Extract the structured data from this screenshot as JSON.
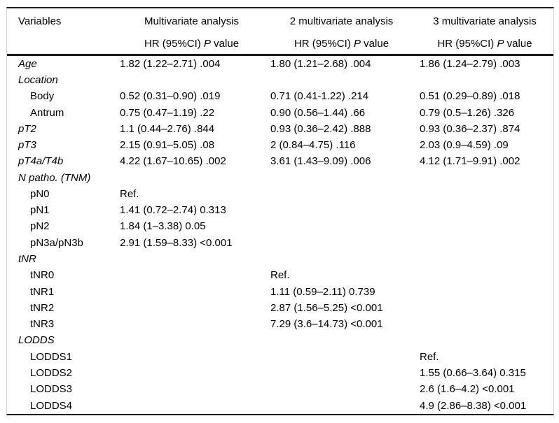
{
  "colors": {
    "rule": "#1a1a1a",
    "frame": "#d6d6d6",
    "text": "#000000",
    "background": "#ffffff"
  },
  "table": {
    "columns": {
      "variables": "Variables",
      "m1": "Multivariate analysis",
      "m2": "2 multivariate analysis",
      "m3": "3 multivariate analysis"
    },
    "subheader": {
      "hr_prefix": "HR (95%CI)",
      "p_italic": "P",
      "value_suffix": "value"
    },
    "rows": [
      {
        "label": "Age",
        "m1": "1.82 (1.22–2.71) .004",
        "m2": "1.80 (1.21–2.68) .004",
        "m3": "1.86 (1.24–2.79) .003"
      },
      {
        "label": "Location",
        "m1": "",
        "m2": "",
        "m3": ""
      },
      {
        "label": "Body",
        "m1": "0.52 (0.31–0.90) .019",
        "m2": "0.71 (0.41-1.22) .214",
        "m3": "0.51 (0.29–0.89) .018"
      },
      {
        "label": "Antrum",
        "m1": "0.75 (0.47–1.19) .22",
        "m2": "0.90 (0.56–1.44) .66",
        "m3": "0.79 (0.5–1.26) .326"
      },
      {
        "label": "pT2",
        "m1": "1.1 (0.44–2.76) .844",
        "m2": "0.93 (0.36–2.42) .888",
        "m3": "0.93 (0.36–2.37) .874"
      },
      {
        "label": "pT3",
        "m1": "2.15 (0.91–5.05) .08",
        "m2": "2 (0.84–4.75) .116",
        "m3": "2.03 (0.9–4.59) .09"
      },
      {
        "label": "pT4a/T4b",
        "m1": "4.22 (1.67–10.65) .002",
        "m2": "3.61 (1.43–9.09) .006",
        "m3": "4.12 (1.71–9.91) .002"
      },
      {
        "label": "N patho. (TNM)",
        "m1": "",
        "m2": "",
        "m3": ""
      },
      {
        "label": "pN0",
        "m1": "Ref.",
        "m2": "",
        "m3": ""
      },
      {
        "label": "pN1",
        "m1": "1.41 (0.72–2.74) 0.313",
        "m2": "",
        "m3": ""
      },
      {
        "label": "pN2",
        "m1": "1.84 (1–3.38) 0.05",
        "m2": "",
        "m3": ""
      },
      {
        "label": "pN3a/pN3b",
        "m1": "2.91 (1.59–8.33) <0.001",
        "m2": "",
        "m3": ""
      },
      {
        "label": "tNR",
        "m1": "",
        "m2": "",
        "m3": ""
      },
      {
        "label": "tNR0",
        "m1": "",
        "m2": "Ref.",
        "m3": ""
      },
      {
        "label": "tNR1",
        "m1": "",
        "m2": "1.11 (0.59–2.11) 0.739",
        "m3": ""
      },
      {
        "label": "tNR2",
        "m1": "",
        "m2": "2.87 (1.56–5.25) <0.001",
        "m3": ""
      },
      {
        "label": "tNR3",
        "m1": "",
        "m2": "7.29 (3.6–14.73) <0.001",
        "m3": ""
      },
      {
        "label": "LODDS",
        "m1": "",
        "m2": "",
        "m3": ""
      },
      {
        "label": "LODDS1",
        "m1": "",
        "m2": "",
        "m3": "Ref."
      },
      {
        "label": "LODDS2",
        "m1": "",
        "m2": "",
        "m3": "1.55 (0.66–3.64) 0.315"
      },
      {
        "label": "LODDS3",
        "m1": "",
        "m2": "",
        "m3": "2.6 (1.6–4.2) <0.001"
      },
      {
        "label": "LODDS4",
        "m1": "",
        "m2": "",
        "m3": "4.9 (2.86–8.38) <0.001"
      }
    ]
  }
}
